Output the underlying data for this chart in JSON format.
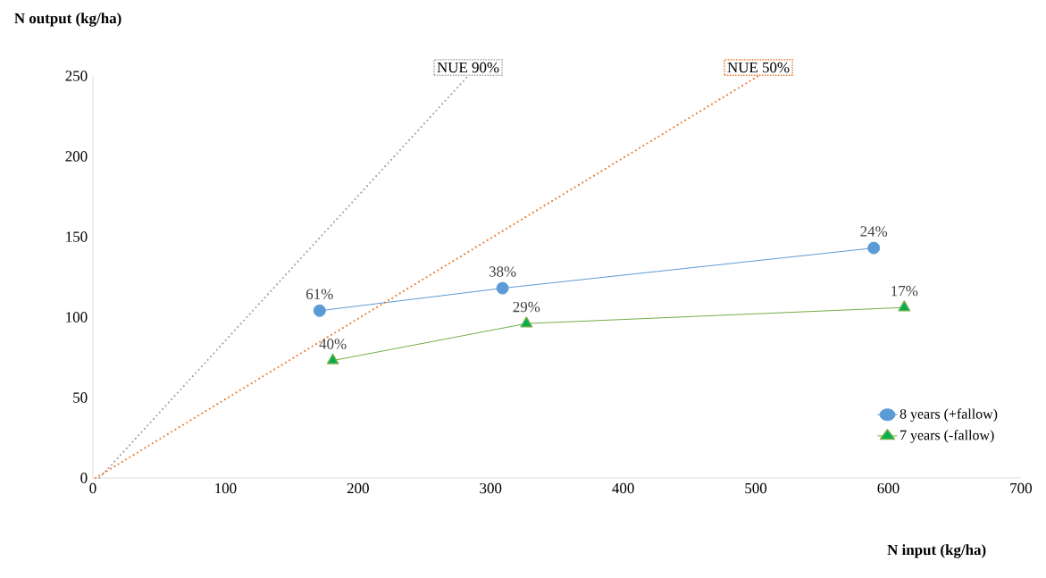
{
  "chart_data": {
    "type": "line",
    "xlabel": "N input (kg/ha)",
    "ylabel": "N output (kg/ha)",
    "xlim": [
      0,
      700
    ],
    "ylim": [
      0,
      250
    ],
    "xticks": [
      0,
      100,
      200,
      300,
      400,
      500,
      600,
      700
    ],
    "yticks": [
      0,
      50,
      100,
      150,
      200,
      250
    ],
    "grid": false,
    "legend": "bottom right",
    "annotations": [
      {
        "text": "61%",
        "x": 171,
        "y": 104
      },
      {
        "text": "38%",
        "x": 309,
        "y": 118
      },
      {
        "text": "24%",
        "x": 589,
        "y": 143
      },
      {
        "text": "40%",
        "x": 181,
        "y": 73
      },
      {
        "text": "29%",
        "x": 327,
        "y": 96
      },
      {
        "text": "17%",
        "x": 612,
        "y": 106
      }
    ],
    "series": [
      {
        "name": "8 years (+fallow)",
        "color": "#5b9bd5",
        "marker": "circle",
        "line_style": "solid",
        "x": [
          171,
          309,
          589
        ],
        "values": [
          104,
          118,
          143
        ]
      },
      {
        "name": "7 years (-fallow)",
        "color": "#70ad47",
        "marker": "triangle",
        "line_style": "solid",
        "x": [
          181,
          327,
          612
        ],
        "values": [
          73,
          96,
          106
        ]
      },
      {
        "name": "NUE 90%",
        "color": "#a5a5a5",
        "marker": "none",
        "line_style": "dotted",
        "x": [
          5,
          283
        ],
        "values": [
          0,
          250
        ]
      },
      {
        "name": "NUE 50%",
        "color": "#ed7d31",
        "marker": "none",
        "line_style": "dotted",
        "x": [
          2,
          502
        ],
        "values": [
          0,
          250
        ]
      }
    ]
  }
}
